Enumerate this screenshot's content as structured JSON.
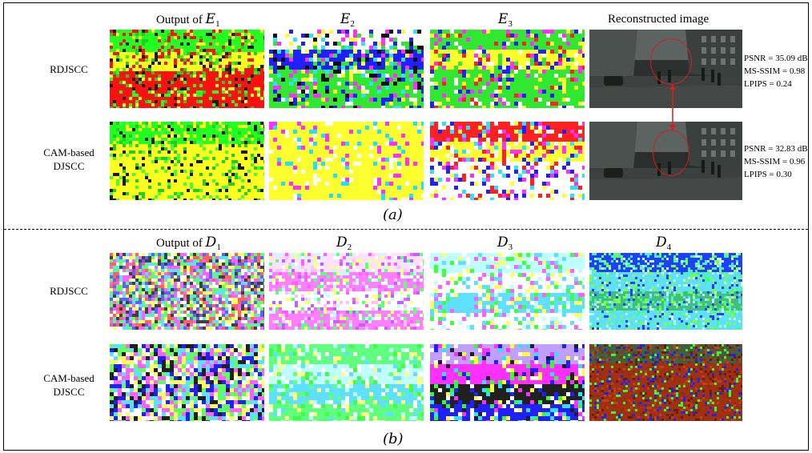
{
  "panel_a": {
    "headers": {
      "e1_prefix": "Output of",
      "e1_sym": "E",
      "e1_sub": "1",
      "e2_sym": "E",
      "e2_sub": "2",
      "e3_sym": "E",
      "e3_sub": "3",
      "recon": "Reconstructed image"
    },
    "rows": [
      {
        "label": "RDJSCC",
        "metrics": [
          "PSNR = 35.09 dB",
          "MS-SSIM = 0.98",
          "LPIPS = 0.24"
        ]
      },
      {
        "label_line1": "CAM-based",
        "label_line2": "DJSCC",
        "metrics": [
          "PSNR = 32.83 dB",
          "MS-SSIM = 0.96",
          "LPIPS = 0.30"
        ]
      }
    ],
    "caption": "(a)"
  },
  "panel_b": {
    "headers": {
      "d1_prefix": "Output of",
      "d1_sym": "D",
      "d1_sub": "1",
      "d2_sym": "D",
      "d2_sub": "2",
      "d3_sym": "D",
      "d3_sub": "3",
      "d4_sym": "D",
      "d4_sub": "4"
    },
    "rows": [
      {
        "label": "RDJSCC"
      },
      {
        "label_line1": "CAM-based",
        "label_line2": "DJSCC"
      }
    ],
    "caption": "(b)"
  },
  "colors": {
    "annotation_red": "#d21f1f"
  }
}
